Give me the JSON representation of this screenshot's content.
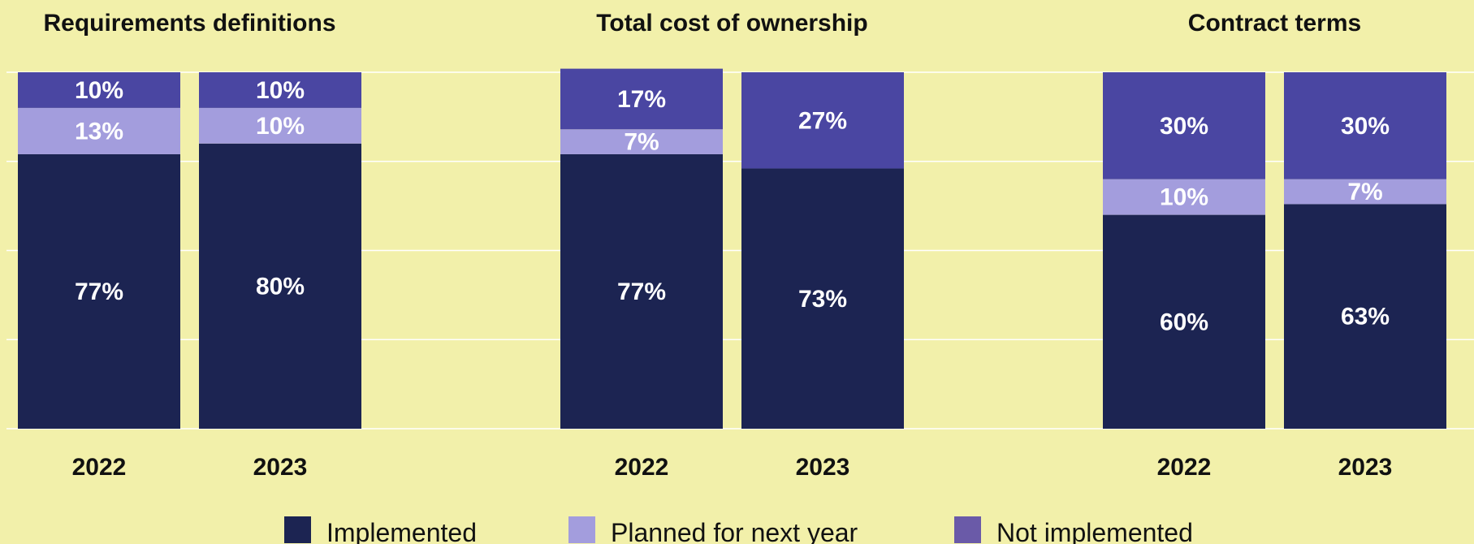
{
  "chart_data": {
    "type": "bar",
    "stacked": true,
    "unit": "%",
    "ylim": [
      0,
      100
    ],
    "grid": true,
    "legend_position": "bottom",
    "legend": [
      {
        "key": "implemented",
        "label": "Implemented",
        "color": "#1c2452"
      },
      {
        "key": "planned",
        "label": "Planned for next year",
        "color": "#a39ddd"
      },
      {
        "key": "not_implemented",
        "label": "Not implemented",
        "color": "#6a5aa8"
      }
    ],
    "segment_colors": {
      "implemented": "#1c2452",
      "planned": "#a39ddd",
      "not_implemented": "#4a46a2"
    },
    "panels": [
      {
        "title": "Requirements definitions",
        "bars": [
          {
            "year": "2022",
            "implemented": 77,
            "planned": 13,
            "not_implemented": 10
          },
          {
            "year": "2023",
            "implemented": 80,
            "planned": 10,
            "not_implemented": 10
          }
        ]
      },
      {
        "title": "Total cost of ownership",
        "bars": [
          {
            "year": "2022",
            "implemented": 77,
            "planned": 7,
            "not_implemented": 17
          },
          {
            "year": "2023",
            "implemented": 73,
            "planned": 0,
            "not_implemented": 27
          }
        ]
      },
      {
        "title": "Contract terms",
        "bars": [
          {
            "year": "2022",
            "implemented": 60,
            "planned": 10,
            "not_implemented": 30
          },
          {
            "year": "2023",
            "implemented": 63,
            "planned": 7,
            "not_implemented": 30
          }
        ]
      }
    ]
  }
}
